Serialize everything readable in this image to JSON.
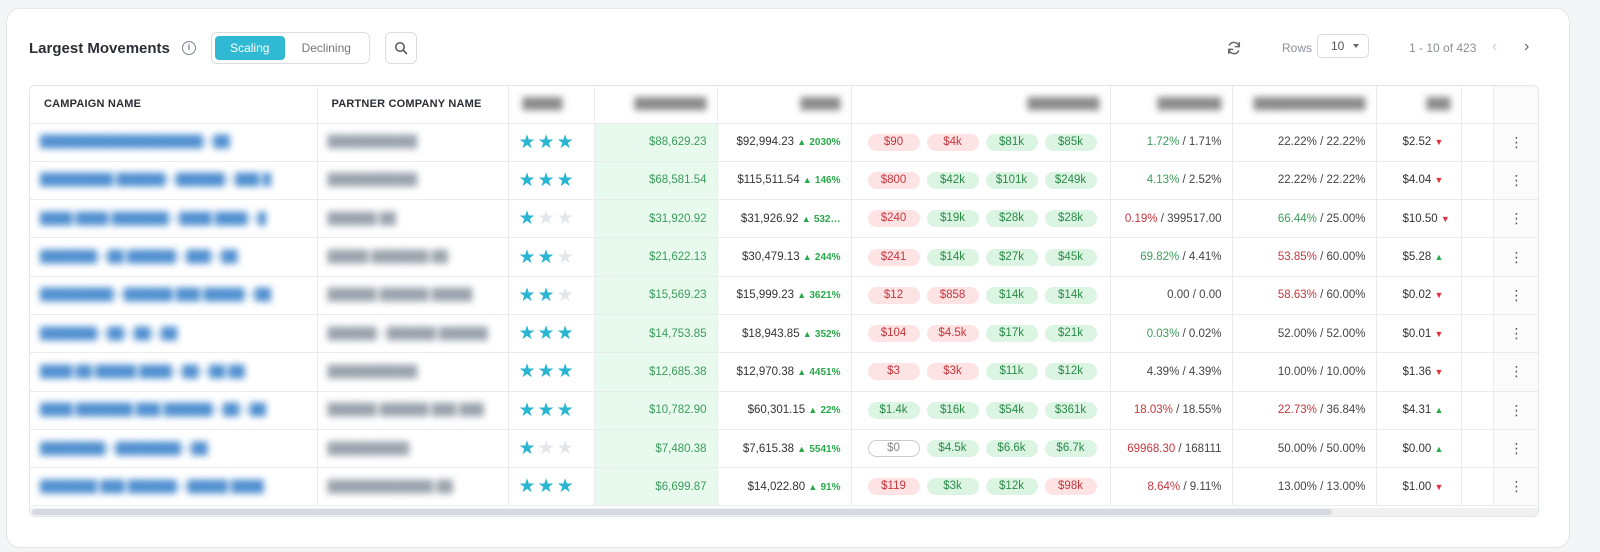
{
  "header": {
    "title": "Largest Movements",
    "tabs": [
      "Scaling",
      "Declining"
    ],
    "rows_label": "Rows",
    "rows_value": "10",
    "pager_text": "1 - 10 of 423"
  },
  "columns": [
    "CAMPAIGN NAME",
    "PARTNER COMPANY NAME"
  ],
  "rows": [
    {
      "rating": 3,
      "today": "$88,629.23",
      "week": "$92,994.23",
      "week_dir": "up",
      "week_pct": "2030%",
      "pills": [
        [
          "$90",
          "neg"
        ],
        [
          "$4k",
          "neg"
        ],
        [
          "$81k",
          "pos"
        ],
        [
          "$85k",
          "pos"
        ]
      ],
      "r1a": "1.72%",
      "r1a_cls": "good",
      "r1b": "1.71%",
      "r2a": "22.22%",
      "r2a_cls": "",
      "r2b": "22.22%",
      "cpc": "$2.52",
      "cpc_dir": "down"
    },
    {
      "rating": 3,
      "today": "$68,581.54",
      "week": "$115,511.54",
      "week_dir": "up",
      "week_pct": "146%",
      "pills": [
        [
          "$800",
          "neg"
        ],
        [
          "$42k",
          "pos"
        ],
        [
          "$101k",
          "pos"
        ],
        [
          "$249k",
          "pos"
        ]
      ],
      "r1a": "4.13%",
      "r1a_cls": "good",
      "r1b": "2.52%",
      "r2a": "22.22%",
      "r2a_cls": "",
      "r2b": "22.22%",
      "cpc": "$4.04",
      "cpc_dir": "down"
    },
    {
      "rating": 1,
      "today": "$31,920.92",
      "week": "$31,926.92",
      "week_dir": "up",
      "week_pct": "532…",
      "pills": [
        [
          "$240",
          "neg"
        ],
        [
          "$19k",
          "pos"
        ],
        [
          "$28k",
          "pos"
        ],
        [
          "$28k",
          "pos"
        ]
      ],
      "r1a": "0.19%",
      "r1a_cls": "bad",
      "r1b": "399517.00",
      "r2a": "66.44%",
      "r2a_cls": "good",
      "r2b": "25.00%",
      "cpc": "$10.50",
      "cpc_dir": "down"
    },
    {
      "rating": 2,
      "today": "$21,622.13",
      "week": "$30,479.13",
      "week_dir": "up",
      "week_pct": "244%",
      "pills": [
        [
          "$241",
          "neg"
        ],
        [
          "$14k",
          "pos"
        ],
        [
          "$27k",
          "pos"
        ],
        [
          "$45k",
          "pos"
        ]
      ],
      "r1a": "69.82%",
      "r1a_cls": "good",
      "r1b": "4.41%",
      "r2a": "53.85%",
      "r2a_cls": "bad",
      "r2b": "60.00%",
      "cpc": "$5.28",
      "cpc_dir": "up"
    },
    {
      "rating": 2,
      "today": "$15,569.23",
      "week": "$15,999.23",
      "week_dir": "up",
      "week_pct": "3621%",
      "pills": [
        [
          "$12",
          "neg"
        ],
        [
          "$858",
          "neg"
        ],
        [
          "$14k",
          "pos"
        ],
        [
          "$14k",
          "pos"
        ]
      ],
      "r1a": "0.00",
      "r1a_cls": "",
      "r1b": "0.00",
      "r2a": "58.63%",
      "r2a_cls": "bad",
      "r2b": "60.00%",
      "cpc": "$0.02",
      "cpc_dir": "down"
    },
    {
      "rating": 3,
      "today": "$14,753.85",
      "week": "$18,943.85",
      "week_dir": "up",
      "week_pct": "352%",
      "pills": [
        [
          "$104",
          "neg"
        ],
        [
          "$4.5k",
          "neg"
        ],
        [
          "$17k",
          "pos"
        ],
        [
          "$21k",
          "pos"
        ]
      ],
      "r1a": "0.03%",
      "r1a_cls": "good",
      "r1b": "0.02%",
      "r2a": "52.00%",
      "r2a_cls": "",
      "r2b": "52.00%",
      "cpc": "$0.01",
      "cpc_dir": "down"
    },
    {
      "rating": 3,
      "today": "$12,685.38",
      "week": "$12,970.38",
      "week_dir": "up",
      "week_pct": "4451%",
      "pills": [
        [
          "$3",
          "neg"
        ],
        [
          "$3k",
          "neg"
        ],
        [
          "$11k",
          "pos"
        ],
        [
          "$12k",
          "pos"
        ]
      ],
      "r1a": "4.39%",
      "r1a_cls": "",
      "r1b": "4.39%",
      "r2a": "10.00%",
      "r2a_cls": "",
      "r2b": "10.00%",
      "cpc": "$1.36",
      "cpc_dir": "down"
    },
    {
      "rating": 3,
      "today": "$10,782.90",
      "week": "$60,301.15",
      "week_dir": "up",
      "week_pct": "22%",
      "pills": [
        [
          "$1.4k",
          "pos"
        ],
        [
          "$16k",
          "pos"
        ],
        [
          "$54k",
          "pos"
        ],
        [
          "$361k",
          "pos"
        ]
      ],
      "r1a": "18.03%",
      "r1a_cls": "bad",
      "r1b": "18.55%",
      "r2a": "22.73%",
      "r2a_cls": "bad",
      "r2b": "36.84%",
      "cpc": "$4.31",
      "cpc_dir": "up"
    },
    {
      "rating": 1,
      "today": "$7,480.38",
      "week": "$7,615.38",
      "week_dir": "up",
      "week_pct": "5541%",
      "pills": [
        [
          "$0",
          "zero"
        ],
        [
          "$4.5k",
          "pos"
        ],
        [
          "$6.6k",
          "pos"
        ],
        [
          "$6.7k",
          "pos"
        ]
      ],
      "r1a": "69968.30",
      "r1a_cls": "bad",
      "r1b": "168111",
      "r2a": "50.00%",
      "r2a_cls": "",
      "r2b": "50.00%",
      "cpc": "$0.00",
      "cpc_dir": "up"
    },
    {
      "rating": 3,
      "today": "$6,699.87",
      "week": "$14,022.80",
      "week_dir": "up",
      "week_pct": "91%",
      "pills": [
        [
          "$119",
          "neg"
        ],
        [
          "$3k",
          "pos"
        ],
        [
          "$12k",
          "pos"
        ],
        [
          "$98k",
          "neg"
        ]
      ],
      "r1a": "8.64%",
      "r1a_cls": "bad",
      "r1b": "9.11%",
      "r2a": "13.00%",
      "r2a_cls": "",
      "r2b": "13.00%",
      "cpc": "$1.00",
      "cpc_dir": "down"
    }
  ]
}
